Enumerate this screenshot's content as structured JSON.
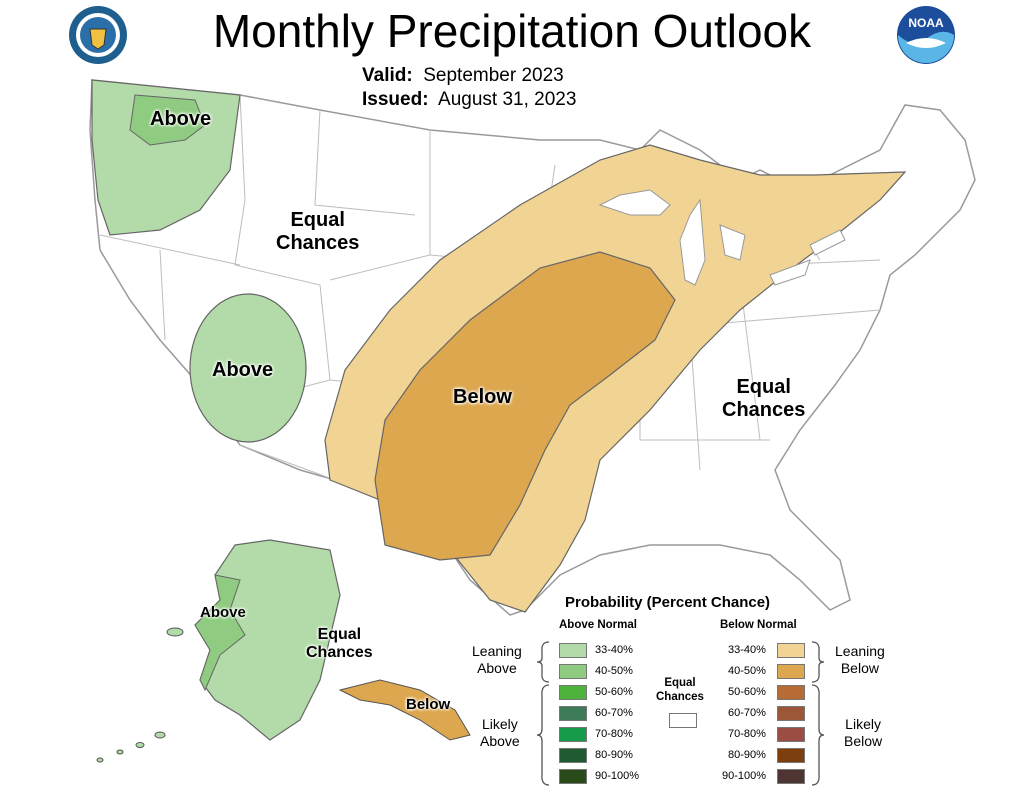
{
  "header": {
    "title": "Monthly Precipitation Outlook",
    "valid_label": "Valid:",
    "valid_value": "September 2023",
    "issued_label": "Issued:",
    "issued_value": "August 31, 2023"
  },
  "logos": {
    "left": "U.S. Department of Commerce seal",
    "right": "NOAA",
    "right_text": "NOAA"
  },
  "colors": {
    "above_33_40": "#b3dba9",
    "above_40_50": "#8fcb80",
    "above_50_60": "#4db33d",
    "above_60_70": "#3c7a58",
    "above_70_80": "#169b4a",
    "above_80_90": "#1f5a33",
    "above_90_100": "#2b4a1a",
    "below_33_40": "#f1d494",
    "below_40_50": "#dca74e",
    "below_50_60": "#b86c35",
    "below_60_70": "#9c5638",
    "below_70_80": "#9b4d44",
    "below_80_90": "#7d3f0e",
    "below_90_100": "#4f3532",
    "equal_chances": "#ffffff",
    "boundary": "#b0b0b0"
  },
  "map_labels": {
    "nw_above": "Above",
    "west_equal_1": "Equal",
    "west_equal_2": "Chances",
    "nv_above": "Above",
    "central_below": "Below",
    "east_equal_1": "Equal",
    "east_equal_2": "Chances",
    "ak_above": "Above",
    "ak_equal_1": "Equal",
    "ak_equal_2": "Chances",
    "ak_below": "Below"
  },
  "legend": {
    "title": "Probability (Percent Chance)",
    "above_header": "Above Normal",
    "below_header": "Below Normal",
    "equal_1": "Equal",
    "equal_2": "Chances",
    "leaning_above_1": "Leaning",
    "leaning_above_2": "Above",
    "likely_above_1": "Likely",
    "likely_above_2": "Above",
    "leaning_below_1": "Leaning",
    "leaning_below_2": "Below",
    "likely_below_1": "Likely",
    "likely_below_2": "Below",
    "ranges": [
      "33-40%",
      "40-50%",
      "50-60%",
      "60-70%",
      "70-80%",
      "80-90%",
      "90-100%"
    ]
  }
}
